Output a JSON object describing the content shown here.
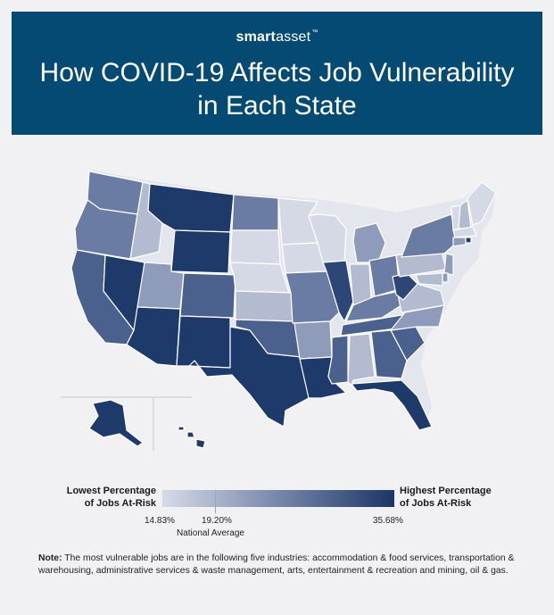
{
  "header": {
    "brand_bold": "smart",
    "brand_light": "asset",
    "brand_tm": "™",
    "title_line1": "How COVID-19 Affects Job Vulnerability",
    "title_line2": "in Each State"
  },
  "legend": {
    "low_line1": "Lowest Percentage",
    "low_line2": "of Jobs At-Risk",
    "high_line1": "Highest Percentage",
    "high_line2": "of Jobs At-Risk",
    "min_label": "14.83%",
    "avg_label": "19.20%",
    "max_label": "35.68%",
    "avg_caption": "National Average",
    "color_low": "#d7dbe7",
    "color_mid": "#7f8fb0",
    "color_high": "#1d3566"
  },
  "note": {
    "label": "Note:",
    "text": "The most vulnerable jobs are in the following five industries: accommodation & food services, transportation & warehousing, administrative services & waste management, arts, entertainment & recreation and mining, oil & gas."
  },
  "map_data": {
    "palette": [
      "#d5d9e5",
      "#b3bbd0",
      "#8f9bba",
      "#6a7ca3",
      "#4a618e",
      "#2b4677",
      "#1e3a6b"
    ],
    "states": [
      {
        "code": "WA",
        "level": 3
      },
      {
        "code": "OR",
        "level": 3
      },
      {
        "code": "CA",
        "level": 4
      },
      {
        "code": "NV",
        "level": 6
      },
      {
        "code": "ID",
        "level": 1
      },
      {
        "code": "MT",
        "level": 6
      },
      {
        "code": "WY",
        "level": 6
      },
      {
        "code": "UT",
        "level": 2
      },
      {
        "code": "CO",
        "level": 4
      },
      {
        "code": "AZ",
        "level": 6
      },
      {
        "code": "NM",
        "level": 6
      },
      {
        "code": "ND",
        "level": 3
      },
      {
        "code": "SD",
        "level": 0
      },
      {
        "code": "NE",
        "level": 0
      },
      {
        "code": "KS",
        "level": 1
      },
      {
        "code": "OK",
        "level": 4
      },
      {
        "code": "TX",
        "level": 6
      },
      {
        "code": "MN",
        "level": 0
      },
      {
        "code": "IA",
        "level": 0
      },
      {
        "code": "MO",
        "level": 3
      },
      {
        "code": "AR",
        "level": 2
      },
      {
        "code": "LA",
        "level": 6
      },
      {
        "code": "WI",
        "level": 0
      },
      {
        "code": "IL",
        "level": 5
      },
      {
        "code": "MI",
        "level": 2
      },
      {
        "code": "IN",
        "level": 1
      },
      {
        "code": "OH",
        "level": 3
      },
      {
        "code": "KY",
        "level": 3
      },
      {
        "code": "TN",
        "level": 4
      },
      {
        "code": "MS",
        "level": 4
      },
      {
        "code": "AL",
        "level": 1
      },
      {
        "code": "GA",
        "level": 4
      },
      {
        "code": "FL",
        "level": 6
      },
      {
        "code": "SC",
        "level": 4
      },
      {
        "code": "NC",
        "level": 2
      },
      {
        "code": "VA",
        "level": 1
      },
      {
        "code": "WV",
        "level": 5
      },
      {
        "code": "PA",
        "level": 1
      },
      {
        "code": "NY",
        "level": 3
      },
      {
        "code": "VT",
        "level": 0
      },
      {
        "code": "NH",
        "level": 1
      },
      {
        "code": "ME",
        "level": 0
      },
      {
        "code": "MA",
        "level": 0
      },
      {
        "code": "RI",
        "level": 6
      },
      {
        "code": "CT",
        "level": 2
      },
      {
        "code": "NJ",
        "level": 2
      },
      {
        "code": "DE",
        "level": 2
      },
      {
        "code": "MD",
        "level": 1
      },
      {
        "code": "AK",
        "level": 6
      },
      {
        "code": "HI",
        "level": 6
      }
    ]
  }
}
